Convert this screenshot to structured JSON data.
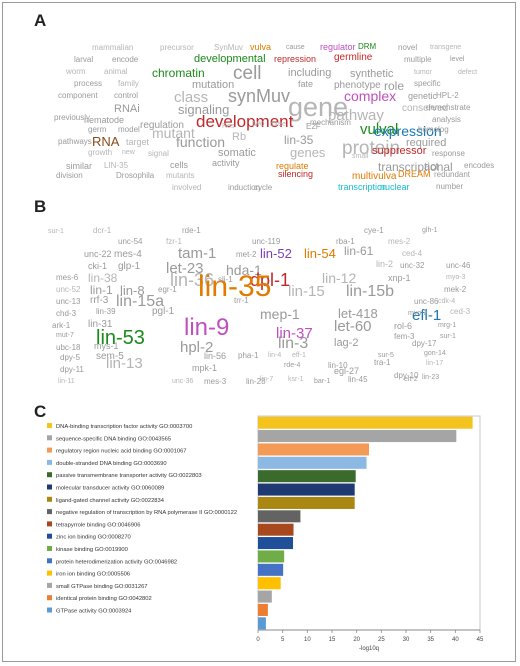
{
  "panels": {
    "a": "A",
    "b": "B",
    "c": "C"
  },
  "cloud_a": [
    {
      "t": "mammalian",
      "c": "#b5b5b5",
      "s": 8
    },
    {
      "t": "precursor",
      "c": "#b5b5b5",
      "s": 8
    },
    {
      "t": "SynMuv",
      "c": "#b5b5b5",
      "s": 8
    },
    {
      "t": "vulva",
      "c": "#e07b00",
      "s": 9
    },
    {
      "t": "cause",
      "c": "#9a9a9a",
      "s": 7
    },
    {
      "t": "regulator",
      "c": "#c04fc0",
      "s": 9
    },
    {
      "t": "DRM",
      "c": "#1a8a1a",
      "s": 8
    },
    {
      "t": "novel",
      "c": "#9a9a9a",
      "s": 8
    },
    {
      "t": "transgene",
      "c": "#b5b5b5",
      "s": 7
    },
    {
      "t": "larval",
      "c": "#9a9a9a",
      "s": 8
    },
    {
      "t": "encode",
      "c": "#9a9a9a",
      "s": 8
    },
    {
      "t": "developmental",
      "c": "#1a8a1a",
      "s": 11
    },
    {
      "t": "repression",
      "c": "#c0282a",
      "s": 9
    },
    {
      "t": "germline",
      "c": "#c0282a",
      "s": 10
    },
    {
      "t": "multiple",
      "c": "#9a9a9a",
      "s": 8
    },
    {
      "t": "level",
      "c": "#9a9a9a",
      "s": 7
    },
    {
      "t": "worm",
      "c": "#b5b5b5",
      "s": 8
    },
    {
      "t": "animal",
      "c": "#b5b5b5",
      "s": 8
    },
    {
      "t": "chromatin",
      "c": "#1a8a1a",
      "s": 12
    },
    {
      "t": "cell",
      "c": "#9a9a9a",
      "s": 19
    },
    {
      "t": "including",
      "c": "#9a9a9a",
      "s": 11
    },
    {
      "t": "synthetic",
      "c": "#9a9a9a",
      "s": 11
    },
    {
      "t": "tumor",
      "c": "#b5b5b5",
      "s": 7
    },
    {
      "t": "defect",
      "c": "#b5b5b5",
      "s": 7
    },
    {
      "t": "process",
      "c": "#9a9a9a",
      "s": 8
    },
    {
      "t": "family",
      "c": "#b5b5b5",
      "s": 8
    },
    {
      "t": "mutation",
      "c": "#9a9a9a",
      "s": 11
    },
    {
      "t": "fate",
      "c": "#9a9a9a",
      "s": 9
    },
    {
      "t": "phenotype",
      "c": "#9a9a9a",
      "s": 10
    },
    {
      "t": "role",
      "c": "#9a9a9a",
      "s": 12
    },
    {
      "t": "specific",
      "c": "#9a9a9a",
      "s": 8
    },
    {
      "t": "component",
      "c": "#9a9a9a",
      "s": 8
    },
    {
      "t": "control",
      "c": "#9a9a9a",
      "s": 8
    },
    {
      "t": "class",
      "c": "#b5b5b5",
      "s": 15
    },
    {
      "t": "synMuv",
      "c": "#9a9a9a",
      "s": 18
    },
    {
      "t": "complex",
      "c": "#c04fc0",
      "s": 14
    },
    {
      "t": "genetic",
      "c": "#9a9a9a",
      "s": 9
    },
    {
      "t": "HPL-2",
      "c": "#9a9a9a",
      "s": 8
    },
    {
      "t": "RNAi",
      "c": "#9a9a9a",
      "s": 11
    },
    {
      "t": "signaling",
      "c": "#9a9a9a",
      "s": 13
    },
    {
      "t": "gene",
      "c": "#b5b5b5",
      "s": 27
    },
    {
      "t": "conserved",
      "c": "#b5b5b5",
      "s": 10
    },
    {
      "t": "demonstrate",
      "c": "#9a9a9a",
      "s": 8
    },
    {
      "t": "previously",
      "c": "#9a9a9a",
      "s": 8
    },
    {
      "t": "nematode",
      "c": "#9a9a9a",
      "s": 9
    },
    {
      "t": "development",
      "c": "#c0282a",
      "s": 17
    },
    {
      "t": "pathway",
      "c": "#b5b5b5",
      "s": 15
    },
    {
      "t": "analysis",
      "c": "#9a9a9a",
      "s": 8
    },
    {
      "t": "germ",
      "c": "#9a9a9a",
      "s": 8
    },
    {
      "t": "model",
      "c": "#9a9a9a",
      "s": 8
    },
    {
      "t": "mutant",
      "c": "#b5b5b5",
      "s": 14
    },
    {
      "t": "vulval",
      "c": "#1a8a1a",
      "s": 15
    },
    {
      "t": "expression",
      "c": "#1a78b4",
      "s": 14
    },
    {
      "t": "homolog",
      "c": "#9a9a9a",
      "s": 8
    },
    {
      "t": "pathways",
      "c": "#9a9a9a",
      "s": 8
    },
    {
      "t": "RNA",
      "c": "#8a4a1a",
      "s": 13
    },
    {
      "t": "target",
      "c": "#b5b5b5",
      "s": 9
    },
    {
      "t": "function",
      "c": "#9a9a9a",
      "s": 14
    },
    {
      "t": "Rb",
      "c": "#b5b5b5",
      "s": 11
    },
    {
      "t": "lin-35",
      "c": "#9a9a9a",
      "s": 12
    },
    {
      "t": "protein",
      "c": "#b5b5b5",
      "s": 19
    },
    {
      "t": "required",
      "c": "#9a9a9a",
      "s": 11
    },
    {
      "t": "growth",
      "c": "#b5b5b5",
      "s": 8
    },
    {
      "t": "new",
      "c": "#b5b5b5",
      "s": 7
    },
    {
      "t": "signal",
      "c": "#b5b5b5",
      "s": 8
    },
    {
      "t": "somatic",
      "c": "#9a9a9a",
      "s": 11
    },
    {
      "t": "genes",
      "c": "#b5b5b5",
      "s": 13
    },
    {
      "t": "suppressor",
      "c": "#c0282a",
      "s": 11
    },
    {
      "t": "response",
      "c": "#9a9a9a",
      "s": 8
    },
    {
      "t": "similar",
      "c": "#9a9a9a",
      "s": 9
    },
    {
      "t": "LIN-35",
      "c": "#b5b5b5",
      "s": 8
    },
    {
      "t": "cells",
      "c": "#9a9a9a",
      "s": 9
    },
    {
      "t": "regulate",
      "c": "#e07b00",
      "s": 9
    },
    {
      "t": "transcriptional",
      "c": "#9a9a9a",
      "s": 12
    },
    {
      "t": "act",
      "c": "#9a9a9a",
      "s": 11
    },
    {
      "t": "encodes",
      "c": "#9a9a9a",
      "s": 8
    },
    {
      "t": "division",
      "c": "#9a9a9a",
      "s": 8
    },
    {
      "t": "Drosophila",
      "c": "#9a9a9a",
      "s": 8
    },
    {
      "t": "mutants",
      "c": "#b5b5b5",
      "s": 8
    },
    {
      "t": "silencing",
      "c": "#c0282a",
      "s": 9
    },
    {
      "t": "multivulva",
      "c": "#e07b00",
      "s": 10
    },
    {
      "t": "DREAM",
      "c": "#e07b00",
      "s": 9
    },
    {
      "t": "redundant",
      "c": "#9a9a9a",
      "s": 8
    },
    {
      "t": "involved",
      "c": "#b5b5b5",
      "s": 8
    },
    {
      "t": "induction",
      "c": "#9a9a9a",
      "s": 8
    },
    {
      "t": "cycle",
      "c": "#9a9a9a",
      "s": 8
    },
    {
      "t": "transcription",
      "c": "#17becf",
      "s": 9
    },
    {
      "t": "nuclear",
      "c": "#17becf",
      "s": 9
    },
    {
      "t": "number",
      "c": "#9a9a9a",
      "s": 8
    },
    {
      "t": "regulation",
      "c": "#9a9a9a",
      "s": 10
    },
    {
      "t": "Res",
      "c": "#b5b5b5",
      "s": 7
    },
    {
      "t": "two",
      "c": "#b5b5b5",
      "s": 8
    },
    {
      "t": "three",
      "c": "#b5b5b5",
      "s": 7
    },
    {
      "t": "E2F",
      "c": "#9a9a9a",
      "s": 8
    },
    {
      "t": "small",
      "c": "#b5b5b5",
      "s": 7
    },
    {
      "t": "activity",
      "c": "#9a9a9a",
      "s": 9
    },
    {
      "t": "mechanism",
      "c": "#9a9a9a",
      "s": 8
    }
  ],
  "cloud_b": [
    {
      "t": "dcr-1",
      "c": "#b5b5b5",
      "s": 8
    },
    {
      "t": "rde-1",
      "c": "#9a9a9a",
      "s": 8
    },
    {
      "t": "cye-1",
      "c": "#9a9a9a",
      "s": 8
    },
    {
      "t": "glh-1",
      "c": "#9a9a9a",
      "s": 7
    },
    {
      "t": "unc-54",
      "c": "#9a9a9a",
      "s": 8
    },
    {
      "t": "fzr-1",
      "c": "#b5b5b5",
      "s": 8
    },
    {
      "t": "unc-119",
      "c": "#9a9a9a",
      "s": 8
    },
    {
      "t": "rba-1",
      "c": "#9a9a9a",
      "s": 8
    },
    {
      "t": "mes-2",
      "c": "#b5b5b5",
      "s": 8
    },
    {
      "t": "unc-22",
      "c": "#9a9a9a",
      "s": 9
    },
    {
      "t": "mes-4",
      "c": "#9a9a9a",
      "s": 10
    },
    {
      "t": "tam-1",
      "c": "#9a9a9a",
      "s": 15
    },
    {
      "t": "lin-52",
      "c": "#7b3fbf",
      "s": 13
    },
    {
      "t": "lin-54",
      "c": "#e07b00",
      "s": 13
    },
    {
      "t": "lin-61",
      "c": "#9a9a9a",
      "s": 12
    },
    {
      "t": "ced-4",
      "c": "#b5b5b5",
      "s": 8
    },
    {
      "t": "cki-1",
      "c": "#9a9a9a",
      "s": 9
    },
    {
      "t": "glp-1",
      "c": "#9a9a9a",
      "s": 10
    },
    {
      "t": "let-23",
      "c": "#9a9a9a",
      "s": 15
    },
    {
      "t": "hda-1",
      "c": "#9a9a9a",
      "s": 14
    },
    {
      "t": "lin-2",
      "c": "#b5b5b5",
      "s": 9
    },
    {
      "t": "unc-32",
      "c": "#9a9a9a",
      "s": 8
    },
    {
      "t": "unc-46",
      "c": "#9a9a9a",
      "s": 8
    },
    {
      "t": "mes-6",
      "c": "#9a9a9a",
      "s": 8
    },
    {
      "t": "lin-38",
      "c": "#b5b5b5",
      "s": 12
    },
    {
      "t": "lin-36",
      "c": "#b5b5b5",
      "s": 18
    },
    {
      "t": "dpl-1",
      "c": "#c0282a",
      "s": 18
    },
    {
      "t": "lin-12",
      "c": "#b5b5b5",
      "s": 14
    },
    {
      "t": "xnp-1",
      "c": "#9a9a9a",
      "s": 9
    },
    {
      "t": "myo-3",
      "c": "#b5b5b5",
      "s": 7
    },
    {
      "t": "unc-52",
      "c": "#b5b5b5",
      "s": 8
    },
    {
      "t": "lin-1",
      "c": "#9a9a9a",
      "s": 12
    },
    {
      "t": "lin-8",
      "c": "#9a9a9a",
      "s": 13
    },
    {
      "t": "egr-1",
      "c": "#9a9a9a",
      "s": 8
    },
    {
      "t": "lin-35",
      "c": "#e07b00",
      "s": 30
    },
    {
      "t": "lin-15",
      "c": "#b5b5b5",
      "s": 15
    },
    {
      "t": "lin-15b",
      "c": "#9a9a9a",
      "s": 16
    },
    {
      "t": "mek-2",
      "c": "#9a9a9a",
      "s": 8
    },
    {
      "t": "unc-13",
      "c": "#9a9a9a",
      "s": 8
    },
    {
      "t": "rrf-3",
      "c": "#9a9a9a",
      "s": 10
    },
    {
      "t": "lin-15a",
      "c": "#9a9a9a",
      "s": 16
    },
    {
      "t": "trr-1",
      "c": "#9a9a9a",
      "s": 8
    },
    {
      "t": "unc-86",
      "c": "#9a9a9a",
      "s": 8
    },
    {
      "t": "cdk-4",
      "c": "#b5b5b5",
      "s": 7
    },
    {
      "t": "chd-3",
      "c": "#9a9a9a",
      "s": 8
    },
    {
      "t": "lin-39",
      "c": "#9a9a9a",
      "s": 8
    },
    {
      "t": "pgl-1",
      "c": "#9a9a9a",
      "s": 10
    },
    {
      "t": "mep-1",
      "c": "#9a9a9a",
      "s": 14
    },
    {
      "t": "let-418",
      "c": "#9a9a9a",
      "s": 13
    },
    {
      "t": "efl-1",
      "c": "#1a78b4",
      "s": 15
    },
    {
      "t": "ced-3",
      "c": "#b5b5b5",
      "s": 8
    },
    {
      "t": "ark-1",
      "c": "#9a9a9a",
      "s": 8
    },
    {
      "t": "lin-31",
      "c": "#9a9a9a",
      "s": 10
    },
    {
      "t": "lin-9",
      "c": "#c04fc0",
      "s": 24
    },
    {
      "t": "let-60",
      "c": "#9a9a9a",
      "s": 15
    },
    {
      "t": "rol-6",
      "c": "#9a9a9a",
      "s": 9
    },
    {
      "t": "mrg-1",
      "c": "#9a9a9a",
      "s": 7
    },
    {
      "t": "mut-7",
      "c": "#9a9a9a",
      "s": 7
    },
    {
      "t": "lin-53",
      "c": "#1a8a1a",
      "s": 20
    },
    {
      "t": "lin-37",
      "c": "#c04fc0",
      "s": 15
    },
    {
      "t": "fem-3",
      "c": "#9a9a9a",
      "s": 8
    },
    {
      "t": "sur-1",
      "c": "#9a9a9a",
      "s": 7
    },
    {
      "t": "ubc-18",
      "c": "#9a9a9a",
      "s": 8
    },
    {
      "t": "mys-1",
      "c": "#9a9a9a",
      "s": 9
    },
    {
      "t": "hpl-2",
      "c": "#9a9a9a",
      "s": 15
    },
    {
      "t": "lin-3",
      "c": "#9a9a9a",
      "s": 16
    },
    {
      "t": "lag-2",
      "c": "#9a9a9a",
      "s": 11
    },
    {
      "t": "dpy-17",
      "c": "#9a9a9a",
      "s": 8
    },
    {
      "t": "dpy-5",
      "c": "#9a9a9a",
      "s": 8
    },
    {
      "t": "sem-5",
      "c": "#9a9a9a",
      "s": 10
    },
    {
      "t": "lin-56",
      "c": "#9a9a9a",
      "s": 9
    },
    {
      "t": "pha-1",
      "c": "#9a9a9a",
      "s": 8
    },
    {
      "t": "lin-4",
      "c": "#b5b5b5",
      "s": 7
    },
    {
      "t": "eff-1",
      "c": "#b5b5b5",
      "s": 7
    },
    {
      "t": "sur-5",
      "c": "#9a9a9a",
      "s": 7
    },
    {
      "t": "gon-14",
      "c": "#9a9a9a",
      "s": 7
    },
    {
      "t": "dpy-11",
      "c": "#9a9a9a",
      "s": 8
    },
    {
      "t": "lin-13",
      "c": "#b5b5b5",
      "s": 15
    },
    {
      "t": "mpk-1",
      "c": "#9a9a9a",
      "s": 9
    },
    {
      "t": "lin-10",
      "c": "#9a9a9a",
      "s": 8
    },
    {
      "t": "egl-27",
      "c": "#9a9a9a",
      "s": 9
    },
    {
      "t": "tra-1",
      "c": "#9a9a9a",
      "s": 8
    },
    {
      "t": "lin-17",
      "c": "#b5b5b5",
      "s": 7
    },
    {
      "t": "lin-11",
      "c": "#b5b5b5",
      "s": 7
    },
    {
      "t": "unc-36",
      "c": "#b5b5b5",
      "s": 7
    },
    {
      "t": "mes-3",
      "c": "#9a9a9a",
      "s": 8
    },
    {
      "t": "lin-28",
      "c": "#9a9a9a",
      "s": 8
    },
    {
      "t": "bar-1",
      "c": "#9a9a9a",
      "s": 7
    },
    {
      "t": "lin-45",
      "c": "#9a9a9a",
      "s": 8
    },
    {
      "t": "dpy-10",
      "c": "#9a9a9a",
      "s": 8
    },
    {
      "t": "lin-23",
      "c": "#9a9a9a",
      "s": 7
    },
    {
      "t": "met-2",
      "c": "#9a9a9a",
      "s": 8
    },
    {
      "t": "sli-1",
      "c": "#9a9a9a",
      "s": 8
    },
    {
      "t": "lin-7",
      "c": "#b5b5b5",
      "s": 7
    },
    {
      "t": "rde-4",
      "c": "#9a9a9a",
      "s": 7
    },
    {
      "t": "ksr-1",
      "c": "#b5b5b5",
      "s": 7
    },
    {
      "t": "elt-2",
      "c": "#9a9a9a",
      "s": 7
    },
    {
      "t": "myo-2",
      "c": "#9a9a9a",
      "s": 7
    },
    {
      "t": "sur-1",
      "c": "#b5b5b5",
      "s": 7
    }
  ],
  "chart_data": {
    "type": "bar",
    "orientation": "horizontal",
    "xlabel": "-log10q",
    "xlim": [
      0,
      45
    ],
    "xticks": [
      0,
      5,
      10,
      15,
      20,
      25,
      30,
      35,
      40,
      45
    ],
    "grid": false,
    "legend": "left",
    "series": [
      {
        "name": "DNA-binding transcription factor activity GO:0003700",
        "value": 43.5,
        "color": "#f5c31d"
      },
      {
        "name": "sequence-specific DNA binding GO:0043565",
        "value": 40.2,
        "color": "#a5a5a5"
      },
      {
        "name": "regulatory region nucleic acid binding GO:0001067",
        "value": 22.5,
        "color": "#f39a57"
      },
      {
        "name": "double-stranded DNA binding GO:0003690",
        "value": 22.0,
        "color": "#8bb9e3"
      },
      {
        "name": "passive transmembrane transporter activity GO:0022803",
        "value": 19.8,
        "color": "#3a6b2c"
      },
      {
        "name": "molecular transducer activity GO:0060089",
        "value": 19.6,
        "color": "#1f3a73"
      },
      {
        "name": "ligand-gated channel activity GO:0022834",
        "value": 19.6,
        "color": "#a98712"
      },
      {
        "name": "negative regulation of transcription by RNA polymerase II GO:0000122",
        "value": 8.6,
        "color": "#636363"
      },
      {
        "name": "tetrapyrrole binding GO:0046906",
        "value": 7.2,
        "color": "#a8481f"
      },
      {
        "name": "zinc ion binding GO:0008270",
        "value": 7.1,
        "color": "#1f4f99"
      },
      {
        "name": "kinase binding GO:0019900",
        "value": 5.3,
        "color": "#70ad47"
      },
      {
        "name": "protein heterodimerization activity GO:0046982",
        "value": 5.1,
        "color": "#4472c4"
      },
      {
        "name": "iron ion binding GO:0005506",
        "value": 4.6,
        "color": "#ffc000"
      },
      {
        "name": "small GTPase binding GO:0031267",
        "value": 2.8,
        "color": "#a5a5a5"
      },
      {
        "name": "identical protein binding GO:0042802",
        "value": 2.0,
        "color": "#ed7d31"
      },
      {
        "name": "GTPase activity GO:0003924",
        "value": 1.6,
        "color": "#5b9bd5"
      }
    ]
  }
}
